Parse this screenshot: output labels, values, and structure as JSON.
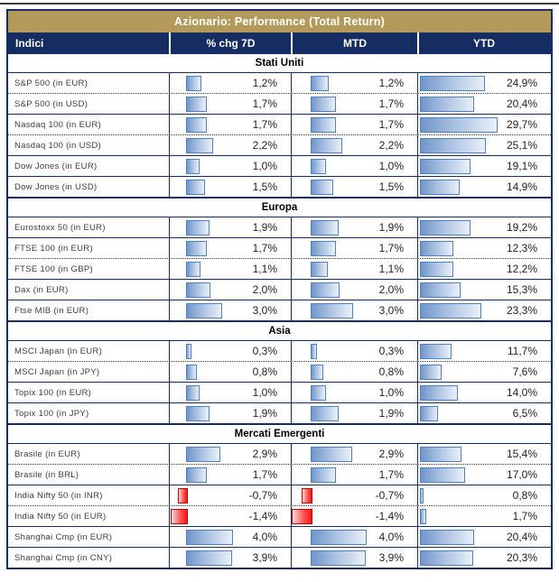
{
  "title": "Azionario: Performance (Total Return)",
  "columns": [
    "Indici",
    "% chg 7D",
    "MTD",
    "YTD"
  ],
  "colors": {
    "header_gold": "#b49a5a",
    "header_navy": "#152d63",
    "bar_positive_border": "#4f81bd",
    "bar_positive_fill": "#7095ca",
    "bar_negative_border": "#c00000",
    "bar_negative_fill": "#ff1616"
  },
  "sections": [
    {
      "name": "Stati Uniti",
      "rows": [
        {
          "label": "S&P 500 (in EUR)",
          "chg7d": "1,2%",
          "mtd": "1,2%",
          "ytd": "24,9%",
          "dotted_after": true
        },
        {
          "label": "S&P 500 (in USD)",
          "chg7d": "1,7%",
          "mtd": "1,7%",
          "ytd": "20,4%",
          "dotted_after": false
        },
        {
          "label": "Nasdaq 100 (in EUR)",
          "chg7d": "1,7%",
          "mtd": "1,7%",
          "ytd": "29,7%",
          "dotted_after": true
        },
        {
          "label": "Nasdaq 100 (in USD)",
          "chg7d": "2,2%",
          "mtd": "2,2%",
          "ytd": "25,1%",
          "dotted_after": false
        },
        {
          "label": "Dow Jones (in EUR)",
          "chg7d": "1,0%",
          "mtd": "1,0%",
          "ytd": "19,1%",
          "dotted_after": false
        },
        {
          "label": "Dow Jones (in USD)",
          "chg7d": "1,5%",
          "mtd": "1,5%",
          "ytd": "14,9%",
          "dotted_after": false
        }
      ]
    },
    {
      "name": "Europa",
      "rows": [
        {
          "label": "Eurostoxx 50 (in EUR)",
          "chg7d": "1,9%",
          "mtd": "1,9%",
          "ytd": "19,2%",
          "dotted_after": false
        },
        {
          "label": "FTSE 100 (in EUR)",
          "chg7d": "1,7%",
          "mtd": "1,7%",
          "ytd": "12,3%",
          "dotted_after": true
        },
        {
          "label": "FTSE 100 (in GBP)",
          "chg7d": "1,1%",
          "mtd": "1,1%",
          "ytd": "12,2%",
          "dotted_after": false
        },
        {
          "label": "Dax (in EUR)",
          "chg7d": "2,0%",
          "mtd": "2,0%",
          "ytd": "15,3%",
          "dotted_after": false
        },
        {
          "label": "Ftse MIB (in EUR)",
          "chg7d": "3,0%",
          "mtd": "3,0%",
          "ytd": "23,3%",
          "dotted_after": false
        }
      ]
    },
    {
      "name": "Asia",
      "rows": [
        {
          "label": "MSCI Japan (in EUR)",
          "chg7d": "0,3%",
          "mtd": "0,3%",
          "ytd": "11,7%",
          "dotted_after": true
        },
        {
          "label": "MSCI Japan (in JPY)",
          "chg7d": "0,8%",
          "mtd": "0,8%",
          "ytd": "7,6%",
          "dotted_after": false
        },
        {
          "label": "Topix 100 (in EUR)",
          "chg7d": "1,0%",
          "mtd": "1,0%",
          "ytd": "14,0%",
          "dotted_after": false
        },
        {
          "label": "Topix 100 (in JPY)",
          "chg7d": "1,9%",
          "mtd": "1,9%",
          "ytd": "6,5%",
          "dotted_after": false
        }
      ]
    },
    {
      "name": "Mercati Emergenti",
      "rows": [
        {
          "label": "Brasile (in EUR)",
          "chg7d": "2,9%",
          "mtd": "2,9%",
          "ytd": "15,4%",
          "dotted_after": true
        },
        {
          "label": "Brasile (in BRL)",
          "chg7d": "1,7%",
          "mtd": "1,7%",
          "ytd": "17,0%",
          "dotted_after": false
        },
        {
          "label": "India Nifty 50 (in INR)",
          "chg7d": "-0,7%",
          "mtd": "-0,7%",
          "ytd": "0,8%",
          "dotted_after": true
        },
        {
          "label": "India Nifty 50 (in EUR)",
          "chg7d": "-1,4%",
          "mtd": "-1,4%",
          "ytd": "1,7%",
          "dotted_after": false
        },
        {
          "label": "Shanghai Cmp (in EUR)",
          "chg7d": "4,0%",
          "mtd": "4,0%",
          "ytd": "20,4%",
          "dotted_after": false
        },
        {
          "label": "Shanghai Cmp (in CNY)",
          "chg7d": "3,9%",
          "mtd": "3,9%",
          "ytd": "20,3%",
          "dotted_after": false
        }
      ]
    }
  ],
  "chart_data": {
    "type": "table",
    "title": "Azionario: Performance (Total Return)",
    "categories": [
      "S&P 500 (in EUR)",
      "S&P 500 (in USD)",
      "Nasdaq 100 (in EUR)",
      "Nasdaq 100 (in USD)",
      "Dow Jones (in EUR)",
      "Dow Jones (in USD)",
      "Eurostoxx 50 (in EUR)",
      "FTSE 100 (in EUR)",
      "FTSE 100 (in GBP)",
      "Dax (in EUR)",
      "Ftse MIB (in EUR)",
      "MSCI Japan (in EUR)",
      "MSCI Japan (in JPY)",
      "Topix 100 (in EUR)",
      "Topix 100 (in JPY)",
      "Brasile (in EUR)",
      "Brasile (in BRL)",
      "India Nifty 50 (in INR)",
      "India Nifty 50 (in EUR)",
      "Shanghai Cmp (in EUR)",
      "Shanghai Cmp (in CNY)"
    ],
    "groups": [
      "Stati Uniti",
      "Stati Uniti",
      "Stati Uniti",
      "Stati Uniti",
      "Stati Uniti",
      "Stati Uniti",
      "Europa",
      "Europa",
      "Europa",
      "Europa",
      "Europa",
      "Asia",
      "Asia",
      "Asia",
      "Asia",
      "Mercati Emergenti",
      "Mercati Emergenti",
      "Mercati Emergenti",
      "Mercati Emergenti",
      "Mercati Emergenti",
      "Mercati Emergenti"
    ],
    "series": [
      {
        "name": "% chg 7D",
        "values": [
          1.2,
          1.7,
          1.7,
          2.2,
          1.0,
          1.5,
          1.9,
          1.7,
          1.1,
          2.0,
          3.0,
          0.3,
          0.8,
          1.0,
          1.9,
          2.9,
          1.7,
          -0.7,
          -1.4,
          4.0,
          3.9
        ]
      },
      {
        "name": "MTD",
        "values": [
          1.2,
          1.7,
          1.7,
          2.2,
          1.0,
          1.5,
          1.9,
          1.7,
          1.1,
          2.0,
          3.0,
          0.3,
          0.8,
          1.0,
          1.9,
          2.9,
          1.7,
          -0.7,
          -1.4,
          4.0,
          3.9
        ]
      },
      {
        "name": "YTD",
        "values": [
          24.9,
          20.4,
          29.7,
          25.1,
          19.1,
          14.9,
          19.2,
          12.3,
          12.2,
          15.3,
          23.3,
          11.7,
          7.6,
          14.0,
          6.5,
          15.4,
          17.0,
          0.8,
          1.7,
          20.4,
          20.3
        ]
      }
    ],
    "bar_style": "in-cell data bars, blue gradient positive, red gradient negative"
  }
}
